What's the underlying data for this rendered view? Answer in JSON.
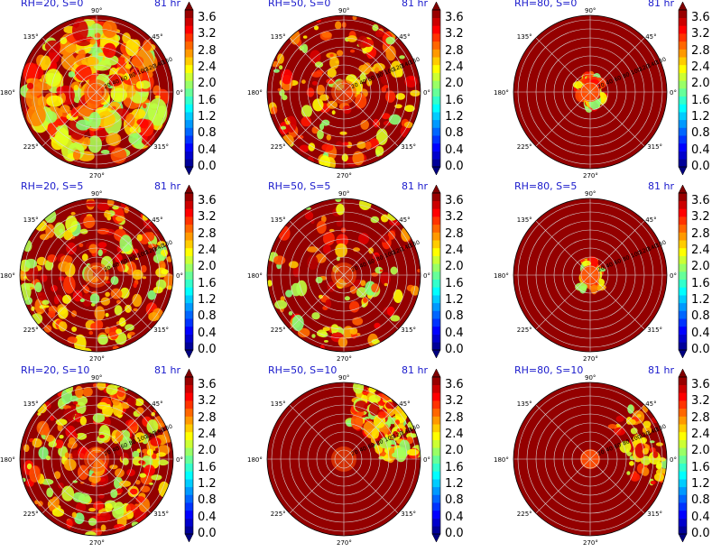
{
  "chart_data": {
    "type": "polar-contourf",
    "colormap": "jet",
    "colorbar": {
      "ticks": [
        "0.0",
        "0.4",
        "0.8",
        "1.2",
        "1.6",
        "2.0",
        "2.4",
        "2.8",
        "3.2",
        "3.6"
      ],
      "levels": 20,
      "vmin": 0.0,
      "vmax": 3.8,
      "extend": "both"
    },
    "angle_labels": [
      "0°",
      "45°",
      "90°",
      "135°",
      "180°",
      "225°",
      "270°",
      "315°"
    ],
    "radial_tick_labels": [
      "20",
      "40",
      "60",
      "80",
      "100",
      "120",
      "140",
      "160"
    ],
    "panels": [
      {
        "title_left": "RH=20, S=0",
        "title_right": "81 hr",
        "rh": 20,
        "s": 0
      },
      {
        "title_left": "RH=50, S=0",
        "title_right": "81 hr",
        "rh": 50,
        "s": 0
      },
      {
        "title_left": "RH=80, S=0",
        "title_right": "81 hr",
        "rh": 80,
        "s": 0
      },
      {
        "title_left": "RH=20, S=5",
        "title_right": "81 hr",
        "rh": 20,
        "s": 5
      },
      {
        "title_left": "RH=50, S=5",
        "title_right": "81 hr",
        "rh": 50,
        "s": 5
      },
      {
        "title_left": "RH=80, S=5",
        "title_right": "81 hr",
        "rh": 80,
        "s": 5
      },
      {
        "title_left": "RH=20, S=10",
        "title_right": "81 hr",
        "rh": 20,
        "s": 10
      },
      {
        "title_left": "RH=50, S=10",
        "title_right": "81 hr",
        "rh": 50,
        "s": 10
      },
      {
        "title_left": "RH=80, S=10",
        "title_right": "81 hr",
        "rh": 80,
        "s": 10
      }
    ]
  }
}
